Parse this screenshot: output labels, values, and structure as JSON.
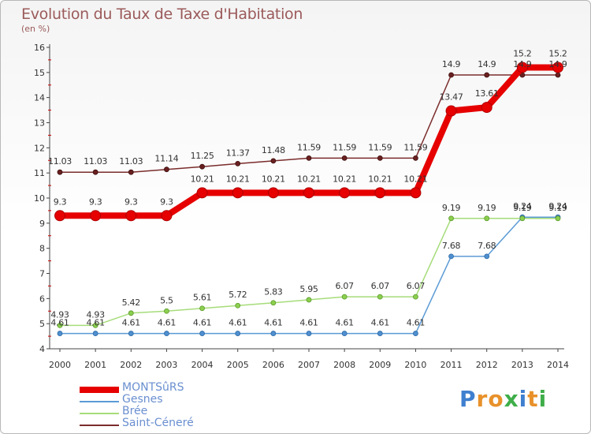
{
  "title": "Evolution du Taux de Taxe d'Habitation",
  "subtitle": "(en %)",
  "brand": {
    "text": "Proxiti",
    "letters": [
      {
        "ch": "P",
        "color": "#3f7fd0"
      },
      {
        "ch": "r",
        "color": "#e8912b"
      },
      {
        "ch": "o",
        "color": "#e8912b"
      },
      {
        "ch": "x",
        "color": "#3fae49"
      },
      {
        "ch": "i",
        "color": "#3f7fd0"
      },
      {
        "ch": "t",
        "color": "#e8912b"
      },
      {
        "ch": "i",
        "color": "#3fae49"
      }
    ]
  },
  "chart_data": {
    "type": "line",
    "title": "Evolution du Taux de Taxe d'Habitation",
    "ylabel": "(en %)",
    "xlabel": "",
    "x": [
      "2000",
      "2001",
      "2002",
      "2003",
      "2004",
      "2005",
      "2006",
      "2007",
      "2008",
      "2009",
      "2010",
      "2011",
      "2012",
      "2013",
      "2014"
    ],
    "ylim": [
      4,
      16
    ],
    "yticks": [
      4,
      5,
      6,
      7,
      8,
      9,
      10,
      11,
      12,
      13,
      14,
      15,
      16
    ],
    "grid": false,
    "legend_position": "bottom-left",
    "series": [
      {
        "name": "MONTSûRS",
        "color": "#e60000",
        "values": [
          9.3,
          9.3,
          9.3,
          9.3,
          10.21,
          10.21,
          10.21,
          10.21,
          10.21,
          10.21,
          10.21,
          13.47,
          13.61,
          15.2,
          15.2
        ],
        "labels": [
          "9.3",
          "9.3",
          "9.3",
          "9.3",
          "10.21",
          "10.21",
          "10.21",
          "10.21",
          "10.21",
          "10.21",
          "10.21",
          "13.47",
          "13.61",
          "15.2",
          "15.2"
        ]
      },
      {
        "name": "Gesnes",
        "color": "#5b9bd5",
        "values": [
          4.61,
          4.61,
          4.61,
          4.61,
          4.61,
          4.61,
          4.61,
          4.61,
          4.61,
          4.61,
          4.61,
          7.68,
          7.68,
          9.24,
          9.24
        ],
        "labels": [
          "4.61",
          "4.61",
          "4.61",
          "4.61",
          "4.61",
          "4.61",
          "4.61",
          "4.61",
          "4.61",
          "4.61",
          "4.61",
          "7.68",
          "7.68",
          "9.24",
          "9.24"
        ]
      },
      {
        "name": "Brée",
        "color": "#92d050",
        "values": [
          4.93,
          4.93,
          5.42,
          5.5,
          5.61,
          5.72,
          5.83,
          5.95,
          6.07,
          6.07,
          6.07,
          9.19,
          9.19,
          9.19,
          9.19
        ],
        "labels": [
          "4.93",
          "4.93",
          "5.42",
          "5.5",
          "5.61",
          "5.72",
          "5.83",
          "5.95",
          "6.07",
          "6.07",
          "6.07",
          "9.19",
          "9.19",
          "9.19",
          "9.19"
        ]
      },
      {
        "name": "Saint-Céneré",
        "color": "#7b2c2c",
        "values": [
          11.03,
          11.03,
          11.03,
          11.14,
          11.25,
          11.37,
          11.48,
          11.59,
          11.59,
          11.59,
          11.59,
          14.9,
          14.9,
          14.9,
          14.9
        ],
        "labels": [
          "11.03",
          "11.03",
          "11.03",
          "11.14",
          "11.25",
          "11.37",
          "11.48",
          "11.59",
          "11.59",
          "11.59",
          "11.59",
          "14.9",
          "14.9",
          "14.9",
          "14.9"
        ]
      }
    ]
  }
}
